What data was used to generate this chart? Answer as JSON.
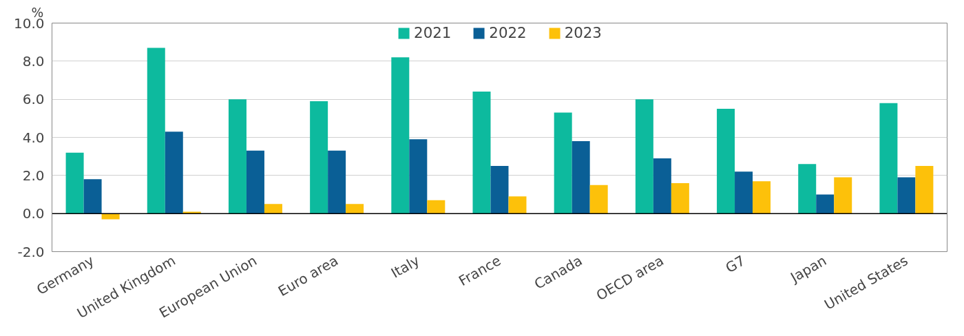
{
  "chart_data": {
    "type": "bar",
    "ylabel": "%",
    "categories": [
      "Germany",
      "United Kingdom",
      "European Union",
      "Euro area",
      "Italy",
      "France",
      "Canada",
      "OECD area",
      "G7",
      "Japan",
      "United States"
    ],
    "series": [
      {
        "name": "2021",
        "color": "#0dba9e",
        "values": [
          3.2,
          8.7,
          6.0,
          5.9,
          8.2,
          6.4,
          5.3,
          6.0,
          5.5,
          2.6,
          5.8
        ]
      },
      {
        "name": "2022",
        "color": "#0a5f96",
        "values": [
          1.8,
          4.3,
          3.3,
          3.3,
          3.9,
          2.5,
          3.8,
          2.9,
          2.2,
          1.0,
          1.9
        ]
      },
      {
        "name": "2023",
        "color": "#fdc10a",
        "values": [
          -0.3,
          0.1,
          0.5,
          0.5,
          0.7,
          0.9,
          1.5,
          1.6,
          1.7,
          1.9,
          2.5
        ]
      }
    ],
    "ylim": [
      -2,
      10
    ],
    "yticks": [
      {
        "value": -2,
        "label": "-2.0"
      },
      {
        "value": 0,
        "label": "0.0"
      },
      {
        "value": 2,
        "label": "2.0"
      },
      {
        "value": 4,
        "label": "4.0"
      },
      {
        "value": 6,
        "label": "6.0"
      },
      {
        "value": 8,
        "label": "8.0"
      },
      {
        "value": 10,
        "label": "10.0"
      }
    ],
    "grid": "y",
    "legend": "top"
  }
}
